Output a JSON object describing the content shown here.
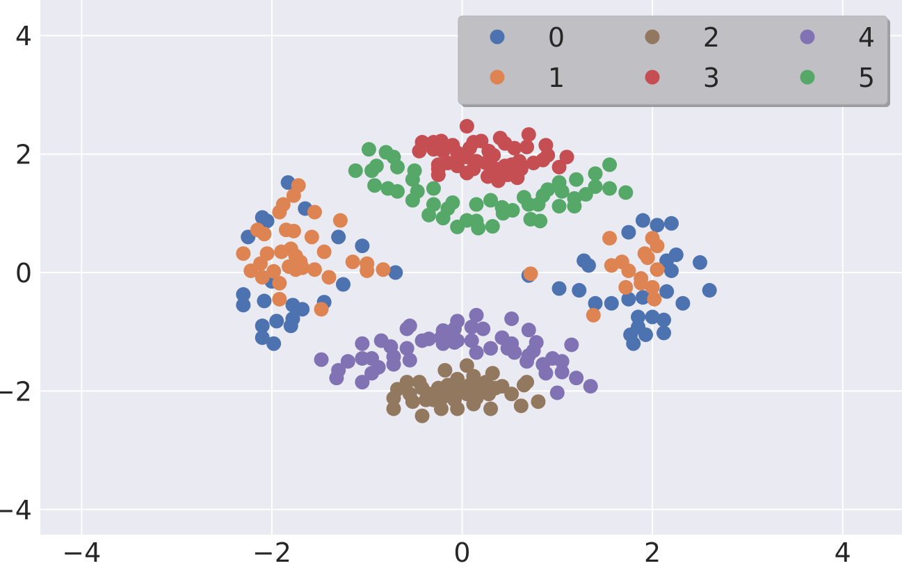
{
  "chart_data": {
    "type": "scatter",
    "title": "",
    "xlabel": "",
    "ylabel": "",
    "xlim": [
      -4.45,
      4.6
    ],
    "ylim": [
      -4.45,
      4.6
    ],
    "x_ticks": [
      -4,
      -2,
      0,
      2,
      4
    ],
    "y_ticks": [
      -4,
      -2,
      0,
      2,
      4
    ],
    "x_tick_labels": [
      "−4",
      "−2",
      "0",
      "2",
      "4"
    ],
    "y_tick_labels": [
      "−4",
      "−2",
      "0",
      "2",
      "4"
    ],
    "grid": true,
    "legend": {
      "position": "top-right",
      "columns": 3
    },
    "series": [
      {
        "name": "0",
        "color": "#4c72b0",
        "points": [
          [
            -2.05,
            0.87
          ],
          [
            -2.1,
            0.93
          ],
          [
            -1.83,
            1.52
          ],
          [
            -1.65,
            1.08
          ],
          [
            -2.25,
            0.6
          ],
          [
            -1.3,
            0.6
          ],
          [
            -1.05,
            0.45
          ],
          [
            -1.25,
            -0.2
          ],
          [
            -2.0,
            -0.15
          ],
          [
            -2.3,
            -0.37
          ],
          [
            -2.3,
            -0.55
          ],
          [
            -2.08,
            -0.48
          ],
          [
            -1.95,
            -0.82
          ],
          [
            -2.1,
            -0.9
          ],
          [
            -2.1,
            -1.1
          ],
          [
            -1.98,
            -1.2
          ],
          [
            -1.78,
            -0.55
          ],
          [
            -1.68,
            -0.62
          ],
          [
            -1.78,
            -0.78
          ],
          [
            -1.8,
            -0.9
          ],
          [
            -1.45,
            -0.5
          ],
          [
            -0.7,
            0.0
          ],
          [
            0.7,
            -0.05
          ],
          [
            1.02,
            -0.27
          ],
          [
            1.23,
            -0.3
          ],
          [
            1.28,
            0.2
          ],
          [
            1.33,
            0.12
          ],
          [
            1.4,
            -0.52
          ],
          [
            1.57,
            -0.52
          ],
          [
            1.75,
            0.68
          ],
          [
            1.9,
            0.88
          ],
          [
            2.05,
            0.8
          ],
          [
            2.2,
            0.83
          ],
          [
            2.25,
            0.3
          ],
          [
            2.15,
            0.2
          ],
          [
            2.2,
            0.03
          ],
          [
            2.5,
            0.17
          ],
          [
            2.6,
            -0.3
          ],
          [
            2.32,
            -0.52
          ],
          [
            2.15,
            -0.32
          ],
          [
            1.9,
            -0.42
          ],
          [
            1.75,
            -0.45
          ],
          [
            1.85,
            -0.75
          ],
          [
            1.85,
            -0.92
          ],
          [
            1.77,
            -1.05
          ],
          [
            1.8,
            -1.2
          ],
          [
            1.93,
            -1.05
          ],
          [
            2.0,
            -0.75
          ],
          [
            2.12,
            -0.8
          ],
          [
            2.12,
            -1.02
          ]
        ]
      },
      {
        "name": "1",
        "color": "#dd8452",
        "points": [
          [
            -1.72,
            1.47
          ],
          [
            -1.77,
            1.3
          ],
          [
            -1.88,
            1.15
          ],
          [
            -1.92,
            1.02
          ],
          [
            -2.15,
            0.72
          ],
          [
            -2.08,
            0.65
          ],
          [
            -1.85,
            0.72
          ],
          [
            -1.77,
            0.7
          ],
          [
            -1.55,
            1.02
          ],
          [
            -1.28,
            0.88
          ],
          [
            -2.3,
            0.32
          ],
          [
            -2.05,
            0.32
          ],
          [
            -2.12,
            0.15
          ],
          [
            -1.9,
            0.35
          ],
          [
            -1.8,
            0.4
          ],
          [
            -1.75,
            0.28
          ],
          [
            -1.7,
            0.18
          ],
          [
            -1.82,
            0.1
          ],
          [
            -1.75,
            0.05
          ],
          [
            -1.68,
            0.08
          ],
          [
            -1.58,
            0.6
          ],
          [
            -1.45,
            0.35
          ],
          [
            -1.55,
            0.05
          ],
          [
            -1.4,
            -0.08
          ],
          [
            -2.22,
            0.03
          ],
          [
            -2.1,
            -0.08
          ],
          [
            -1.98,
            0.02
          ],
          [
            -1.92,
            -0.18
          ],
          [
            -1.92,
            -0.45
          ],
          [
            -1.48,
            -0.62
          ],
          [
            -1.15,
            0.18
          ],
          [
            -1.0,
            0.15
          ],
          [
            -1.0,
            0.03
          ],
          [
            -0.83,
            0.05
          ],
          [
            0.72,
            -0.02
          ],
          [
            1.38,
            -0.72
          ],
          [
            1.55,
            0.58
          ],
          [
            1.57,
            0.12
          ],
          [
            1.68,
            0.18
          ],
          [
            1.75,
            0.03
          ],
          [
            1.72,
            -0.25
          ],
          [
            1.88,
            -0.1
          ],
          [
            1.88,
            -0.18
          ],
          [
            1.92,
            0.32
          ],
          [
            1.95,
            0.25
          ],
          [
            2.0,
            0.58
          ],
          [
            2.05,
            0.45
          ],
          [
            2.05,
            0.05
          ],
          [
            2.0,
            -0.25
          ],
          [
            2.02,
            -0.45
          ]
        ]
      },
      {
        "name": "2",
        "color": "#937860",
        "points": [
          [
            0.05,
            -1.57
          ],
          [
            -0.18,
            -1.65
          ],
          [
            -0.05,
            -1.8
          ],
          [
            0.12,
            -1.75
          ],
          [
            0.25,
            -1.85
          ],
          [
            0.32,
            -1.7
          ],
          [
            -0.45,
            -1.85
          ],
          [
            -0.58,
            -1.85
          ],
          [
            -0.68,
            -1.97
          ],
          [
            -0.72,
            -2.12
          ],
          [
            -0.55,
            -2.05
          ],
          [
            -0.42,
            -1.95
          ],
          [
            -0.35,
            -2.05
          ],
          [
            -0.25,
            -1.95
          ],
          [
            -0.15,
            -1.9
          ],
          [
            -0.08,
            -1.98
          ],
          [
            0.0,
            -1.95
          ],
          [
            0.08,
            -1.9
          ],
          [
            0.15,
            -1.95
          ],
          [
            0.22,
            -2.0
          ],
          [
            0.35,
            -1.95
          ],
          [
            0.42,
            -1.92
          ],
          [
            0.52,
            -2.05
          ],
          [
            0.65,
            -1.9
          ],
          [
            0.68,
            -1.85
          ],
          [
            -0.52,
            -2.18
          ],
          [
            -0.38,
            -2.15
          ],
          [
            -0.3,
            -2.15
          ],
          [
            -0.2,
            -2.1
          ],
          [
            -0.08,
            -2.15
          ],
          [
            0.05,
            -2.05
          ],
          [
            0.15,
            -2.12
          ],
          [
            0.28,
            -2.05
          ],
          [
            -0.72,
            -2.3
          ],
          [
            -0.42,
            -2.42
          ],
          [
            -0.22,
            -2.3
          ],
          [
            -0.05,
            -2.3
          ],
          [
            0.12,
            -2.22
          ],
          [
            0.3,
            -2.3
          ],
          [
            0.62,
            -2.25
          ],
          [
            0.8,
            -2.18
          ]
        ]
      },
      {
        "name": "3",
        "color": "#c44e52",
        "points": [
          [
            0.05,
            2.47
          ],
          [
            -0.42,
            2.2
          ],
          [
            -0.3,
            2.2
          ],
          [
            -0.22,
            2.22
          ],
          [
            -0.1,
            2.15
          ],
          [
            0.12,
            2.2
          ],
          [
            0.2,
            2.22
          ],
          [
            0.4,
            2.27
          ],
          [
            0.45,
            2.18
          ],
          [
            0.7,
            2.33
          ],
          [
            0.88,
            2.15
          ],
          [
            -0.45,
            2.05
          ],
          [
            -0.3,
            2.08
          ],
          [
            -0.2,
            2.05
          ],
          [
            -0.05,
            2.02
          ],
          [
            0.08,
            2.1
          ],
          [
            0.28,
            2.05
          ],
          [
            0.33,
            1.98
          ],
          [
            0.55,
            2.1
          ],
          [
            0.68,
            2.12
          ],
          [
            0.9,
            1.98
          ],
          [
            1.1,
            1.95
          ],
          [
            -0.25,
            1.82
          ],
          [
            -0.15,
            1.85
          ],
          [
            -0.05,
            1.8
          ],
          [
            0.05,
            1.95
          ],
          [
            0.15,
            1.88
          ],
          [
            0.25,
            1.85
          ],
          [
            0.35,
            1.75
          ],
          [
            0.45,
            1.8
          ],
          [
            0.52,
            1.82
          ],
          [
            0.6,
            1.88
          ],
          [
            0.75,
            1.85
          ],
          [
            0.85,
            1.9
          ],
          [
            1.02,
            1.78
          ],
          [
            -0.25,
            1.65
          ],
          [
            -0.25,
            1.75
          ],
          [
            0.05,
            1.68
          ],
          [
            0.12,
            1.75
          ],
          [
            0.27,
            1.62
          ],
          [
            0.38,
            1.55
          ],
          [
            0.48,
            1.65
          ],
          [
            0.58,
            1.6
          ],
          [
            0.62,
            1.75
          ]
        ]
      },
      {
        "name": "4",
        "color": "#8172b3",
        "points": [
          [
            -0.05,
            -0.82
          ],
          [
            0.15,
            -0.72
          ],
          [
            -0.55,
            -0.9
          ],
          [
            -0.58,
            -0.95
          ],
          [
            -0.2,
            -0.98
          ],
          [
            -0.08,
            -0.95
          ],
          [
            0.1,
            -0.92
          ],
          [
            0.22,
            -0.95
          ],
          [
            0.52,
            -0.78
          ],
          [
            0.7,
            -0.97
          ],
          [
            -0.42,
            -1.15
          ],
          [
            -0.35,
            -1.12
          ],
          [
            -0.22,
            -1.1
          ],
          [
            -0.15,
            -1.12
          ],
          [
            -0.05,
            -1.15
          ],
          [
            0.1,
            -1.15
          ],
          [
            0.42,
            -1.1
          ],
          [
            0.52,
            -1.2
          ],
          [
            -0.2,
            -1.2
          ],
          [
            -0.08,
            -1.18
          ],
          [
            0.3,
            -1.28
          ],
          [
            0.48,
            -1.28
          ],
          [
            -0.58,
            -1.28
          ],
          [
            -0.75,
            -1.25
          ],
          [
            -0.85,
            -1.15
          ],
          [
            -1.05,
            -1.2
          ],
          [
            -0.95,
            -1.45
          ],
          [
            -1.05,
            -1.45
          ],
          [
            -0.72,
            -1.42
          ],
          [
            -0.55,
            -1.48
          ],
          [
            0.15,
            -1.35
          ],
          [
            0.55,
            -1.35
          ],
          [
            0.7,
            -1.4
          ],
          [
            0.78,
            -1.18
          ],
          [
            0.75,
            -1.32
          ],
          [
            0.68,
            -1.5
          ],
          [
            0.85,
            -1.55
          ],
          [
            0.95,
            -1.45
          ],
          [
            1.05,
            -1.5
          ],
          [
            1.15,
            -1.22
          ],
          [
            1.2,
            -1.78
          ],
          [
            1.05,
            -1.68
          ],
          [
            0.88,
            -1.7
          ],
          [
            -1.2,
            -1.5
          ],
          [
            -1.3,
            -1.65
          ],
          [
            -1.32,
            -1.78
          ],
          [
            -1.05,
            -1.85
          ],
          [
            -0.95,
            -1.7
          ],
          [
            -0.88,
            -1.6
          ],
          [
            -0.72,
            -1.55
          ],
          [
            -1.48,
            -1.47
          ],
          [
            1.0,
            -2.03
          ],
          [
            1.35,
            -1.92
          ]
        ]
      },
      {
        "name": "5",
        "color": "#55a868",
        "points": [
          [
            -0.98,
            2.08
          ],
          [
            -0.8,
            2.03
          ],
          [
            -0.72,
            1.95
          ],
          [
            -0.9,
            1.8
          ],
          [
            -1.12,
            1.72
          ],
          [
            -0.95,
            1.72
          ],
          [
            -0.68,
            1.78
          ],
          [
            -0.5,
            1.72
          ],
          [
            -0.52,
            1.57
          ],
          [
            -0.92,
            1.47
          ],
          [
            -0.78,
            1.42
          ],
          [
            -0.68,
            1.37
          ],
          [
            -0.47,
            1.37
          ],
          [
            -0.52,
            1.22
          ],
          [
            -0.3,
            1.42
          ],
          [
            -0.3,
            1.15
          ],
          [
            -0.1,
            1.18
          ],
          [
            -0.15,
            1.08
          ],
          [
            0.15,
            1.15
          ],
          [
            0.3,
            1.22
          ],
          [
            -0.35,
            0.97
          ],
          [
            -0.2,
            0.92
          ],
          [
            -0.05,
            0.77
          ],
          [
            0.05,
            0.88
          ],
          [
            0.15,
            0.87
          ],
          [
            0.17,
            0.75
          ],
          [
            0.32,
            0.78
          ],
          [
            0.42,
            1.1
          ],
          [
            0.43,
            1.0
          ],
          [
            0.53,
            1.05
          ],
          [
            0.65,
            1.27
          ],
          [
            0.7,
            1.15
          ],
          [
            0.8,
            1.15
          ],
          [
            0.72,
            0.9
          ],
          [
            0.82,
            0.87
          ],
          [
            0.85,
            1.3
          ],
          [
            0.9,
            1.4
          ],
          [
            1.02,
            1.52
          ],
          [
            1.05,
            1.37
          ],
          [
            1.02,
            1.12
          ],
          [
            1.18,
            1.25
          ],
          [
            1.18,
            1.12
          ],
          [
            1.2,
            1.57
          ],
          [
            1.3,
            1.32
          ],
          [
            1.4,
            1.45
          ],
          [
            1.4,
            1.67
          ],
          [
            1.55,
            1.42
          ],
          [
            1.55,
            1.82
          ],
          [
            1.72,
            1.35
          ]
        ]
      }
    ]
  }
}
